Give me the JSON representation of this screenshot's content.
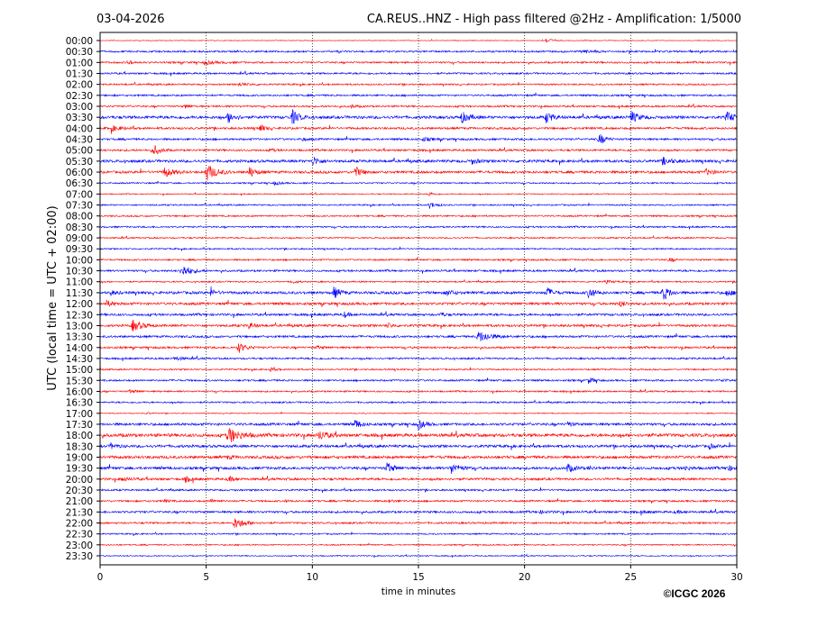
{
  "chart_data": {
    "type": "line",
    "title_left": "03-04-2026",
    "title_right": "CA.REUS..HNZ - High pass filtered @2Hz - Amplification: 1/5000",
    "ylabel": "UTC (local time = UTC + 02:00)",
    "xlabel": "time in minutes",
    "xlim": [
      0,
      30
    ],
    "xticks": [
      0,
      5,
      10,
      15,
      20,
      25,
      30
    ],
    "grid_minutes": [
      5,
      10,
      15,
      20,
      25
    ],
    "row_labels": [
      "00:00",
      "00:30",
      "01:00",
      "01:30",
      "02:00",
      "02:30",
      "03:00",
      "03:30",
      "04:00",
      "04:30",
      "05:00",
      "05:30",
      "06:00",
      "06:30",
      "07:00",
      "07:30",
      "08:00",
      "08:30",
      "09:00",
      "09:30",
      "10:00",
      "10:30",
      "11:00",
      "11:30",
      "12:00",
      "12:30",
      "13:00",
      "13:30",
      "14:00",
      "14:30",
      "15:00",
      "15:30",
      "16:00",
      "16:30",
      "17:00",
      "17:30",
      "18:00",
      "18:30",
      "19:00",
      "19:30",
      "20:00",
      "20:30",
      "21:00",
      "21:30",
      "22:00",
      "22:30",
      "23:00",
      "23:30"
    ],
    "colors": [
      "#ff0000",
      "#0000ff"
    ],
    "trace_unit": "relative amplitude",
    "base_noise": [
      0.4,
      1,
      1,
      1,
      0.9,
      1,
      1,
      1.6,
      1.2,
      1.1,
      1.1,
      1.5,
      1.4,
      0.8,
      0.6,
      0.8,
      0.9,
      0.9,
      0.8,
      0.8,
      0.9,
      1.1,
      0.8,
      1.5,
      1.4,
      1.3,
      1.3,
      1.2,
      1.1,
      1,
      0.8,
      1,
      0.9,
      0.9,
      0.5,
      1.4,
      1.8,
      1.5,
      1.6,
      1.5,
      1.3,
      1,
      1,
      1.2,
      1,
      0.8,
      0.7,
      0.6
    ],
    "events": [
      [
        0,
        21,
        4,
        0.5
      ],
      [
        1,
        22.7,
        6,
        0.3
      ],
      [
        2,
        1.3,
        3,
        0.5
      ],
      [
        2,
        4.9,
        8,
        0.3
      ],
      [
        4,
        6.5,
        7,
        0.3
      ],
      [
        6,
        4,
        3,
        0.4
      ],
      [
        6,
        11.8,
        4,
        0.3
      ],
      [
        7,
        6,
        4,
        1
      ],
      [
        7,
        9,
        4,
        1.5
      ],
      [
        7,
        17,
        5,
        1
      ],
      [
        7,
        21,
        4,
        1
      ],
      [
        7,
        25,
        5,
        1
      ],
      [
        7,
        29.5,
        5,
        1
      ],
      [
        8,
        0.5,
        6,
        0.5
      ],
      [
        8,
        7.5,
        3,
        0.8
      ],
      [
        9,
        9.5,
        3,
        0.3
      ],
      [
        9,
        15.2,
        6,
        0.3
      ],
      [
        9,
        23.5,
        4,
        1
      ],
      [
        10,
        2.5,
        4,
        1
      ],
      [
        10,
        8,
        3,
        0.3
      ],
      [
        11,
        10,
        4,
        0.8
      ],
      [
        11,
        17.5,
        4,
        0.5
      ],
      [
        11,
        26.5,
        6,
        0.6
      ],
      [
        12,
        3,
        5,
        1
      ],
      [
        12,
        5,
        6,
        1.5
      ],
      [
        12,
        7,
        4,
        1
      ],
      [
        12,
        12,
        4,
        1
      ],
      [
        12,
        28.5,
        5,
        0.5
      ],
      [
        13,
        8.2,
        4,
        0.3
      ],
      [
        14,
        15.5,
        3,
        0.4
      ],
      [
        15,
        15.5,
        4,
        0.6
      ],
      [
        20,
        26.8,
        3,
        0.4
      ],
      [
        21,
        3.8,
        6,
        1.2
      ],
      [
        22,
        9,
        4,
        0.3
      ],
      [
        22,
        23.8,
        4,
        0.3
      ],
      [
        23,
        0.5,
        3,
        0.4
      ],
      [
        23,
        5.2,
        4,
        0.5
      ],
      [
        23,
        11,
        4,
        1
      ],
      [
        23,
        16.3,
        4,
        0.5
      ],
      [
        23,
        21,
        4,
        1
      ],
      [
        23,
        23,
        4,
        1
      ],
      [
        23,
        26.5,
        4,
        1.5
      ],
      [
        23,
        29.5,
        5,
        0.5
      ],
      [
        24,
        0.3,
        4,
        0.5
      ],
      [
        24,
        24.5,
        3,
        0.6
      ],
      [
        25,
        11.5,
        3,
        0.5
      ],
      [
        25,
        16,
        3,
        0.4
      ],
      [
        26,
        1.5,
        6,
        1
      ],
      [
        26,
        7,
        4,
        0.5
      ],
      [
        26,
        13.5,
        3,
        0.5
      ],
      [
        27,
        17.8,
        8,
        1
      ],
      [
        28,
        6.5,
        4,
        1
      ],
      [
        28,
        10.2,
        3,
        0.3
      ],
      [
        29,
        3.5,
        6,
        0.3
      ],
      [
        30,
        8,
        3,
        0.4
      ],
      [
        31,
        23,
        4,
        0.5
      ],
      [
        31,
        29.3,
        3,
        0.3
      ],
      [
        32,
        1.4,
        4,
        0.3
      ],
      [
        34,
        2.2,
        3,
        0.2
      ],
      [
        35,
        12,
        4,
        0.8
      ],
      [
        35,
        15,
        4,
        0.8
      ],
      [
        35,
        22,
        3,
        0.5
      ],
      [
        36,
        6,
        7,
        1.5
      ],
      [
        36,
        10.3,
        5,
        0.8
      ],
      [
        37,
        0.5,
        4,
        0.4
      ],
      [
        37,
        28.7,
        3,
        0.4
      ],
      [
        38,
        6,
        3,
        0.3
      ],
      [
        39,
        13.5,
        4,
        1
      ],
      [
        39,
        16.5,
        5,
        1
      ],
      [
        39,
        22,
        4,
        0.8
      ],
      [
        39,
        23,
        3,
        0.3
      ],
      [
        39,
        27.5,
        4,
        0.4
      ],
      [
        39,
        29.5,
        4,
        0.5
      ],
      [
        40,
        1,
        5,
        0.3
      ],
      [
        40,
        4,
        4,
        0.5
      ],
      [
        40,
        6,
        4,
        0.5
      ],
      [
        42,
        3,
        4,
        0.2
      ],
      [
        42,
        5.2,
        4,
        0.3
      ],
      [
        42,
        8.7,
        3,
        0.2
      ],
      [
        42,
        13.6,
        4,
        0.2
      ],
      [
        43,
        20.7,
        6,
        0.2
      ],
      [
        43,
        25.5,
        5,
        0.2
      ],
      [
        43,
        27.1,
        5,
        0.2
      ],
      [
        44,
        6.3,
        7,
        1
      ]
    ],
    "event_fields": [
      "row",
      "minute",
      "peak_amplitude",
      "duration_seconds_x10"
    ]
  },
  "copyright": "©ICGC 2026"
}
